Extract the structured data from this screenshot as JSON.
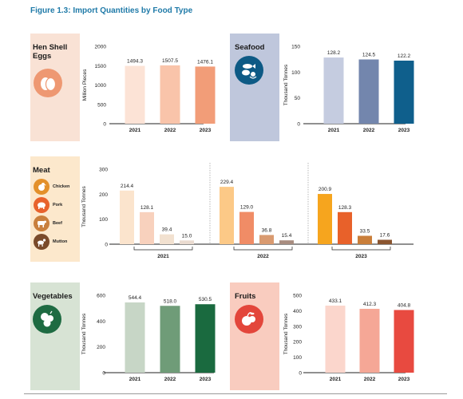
{
  "figure_title": "Figure 1.3: Import Quantities by Food Type",
  "colors": {
    "title": "#1f7aa8",
    "eggs_side": "#f9e2d5",
    "eggs_icon": "#ee9872",
    "seafood_side": "#bfc7dc",
    "seafood_icon": "#0d5a85",
    "meat_side": "#fce8cc",
    "meat_icon": "#e3902a",
    "veg_side": "#d7e3d4",
    "veg_icon": "#1e6b42",
    "fruits_side": "#f9ccbf",
    "fruits_icon": "#e3463b"
  },
  "panels": {
    "eggs": {
      "label_line1": "Hen Shell",
      "label_line2": "Eggs",
      "icon": "egg-icon"
    },
    "seafood": {
      "label": "Seafood",
      "icon": "fish-icon"
    },
    "meat": {
      "label": "Meat",
      "legend": [
        {
          "label": "Chicken",
          "icon": "chicken-icon",
          "color": "#e3902a"
        },
        {
          "label": "Pork",
          "icon": "pig-icon",
          "color": "#e8622c"
        },
        {
          "label": "Beef",
          "icon": "cow-icon",
          "color": "#c97f3c"
        },
        {
          "label": "Mutton",
          "icon": "goat-icon",
          "color": "#7a4a2a"
        }
      ]
    },
    "vegetables": {
      "label": "Vegetables",
      "icon": "vegetables-icon"
    },
    "fruits": {
      "label": "Fruits",
      "icon": "fruit-icon"
    }
  },
  "chart_data": [
    {
      "id": "eggs",
      "type": "bar",
      "ylabel": "Million Pieces",
      "categories": [
        "2021",
        "2022",
        "2023"
      ],
      "values": [
        1494.3,
        1507.5,
        1476.1
      ],
      "labels": [
        "1494.3",
        "1507.5",
        "1476.1"
      ],
      "colors": [
        "#fce3d6",
        "#f9c4aa",
        "#f29d78"
      ],
      "ylim": [
        0,
        2000
      ],
      "yticks": [
        0,
        500,
        1000,
        1500,
        2000
      ]
    },
    {
      "id": "seafood",
      "type": "bar",
      "ylabel": "Thousand Tonnes",
      "categories": [
        "2021",
        "2022",
        "2023"
      ],
      "values": [
        128.2,
        124.5,
        122.2
      ],
      "labels": [
        "128.2",
        "124.5",
        "122.2"
      ],
      "colors": [
        "#c5cce0",
        "#7386ad",
        "#0f5f8c"
      ],
      "ylim": [
        0,
        150
      ],
      "yticks": [
        0,
        50,
        100,
        150
      ]
    },
    {
      "id": "meat",
      "type": "bar",
      "ylabel": "Thousand Tonnes",
      "group_categories": [
        "2021",
        "2022",
        "2023"
      ],
      "series_order": [
        "Chicken",
        "Pork",
        "Beef",
        "Mutton"
      ],
      "groups": [
        {
          "year": "2021",
          "values": [
            214.4,
            128.1,
            39.4,
            15.0
          ],
          "labels": [
            "214.4",
            "128.1",
            "39.4",
            "15.0"
          ],
          "colors": [
            "#fbe4cd",
            "#f8d1bd",
            "#f2e1d0",
            "#eadbd0"
          ]
        },
        {
          "year": "2022",
          "values": [
            229.4,
            129.0,
            36.8,
            15.4
          ],
          "labels": [
            "229.4",
            "129.0",
            "36.8",
            "15.4"
          ],
          "colors": [
            "#fcc987",
            "#f08c66",
            "#d99a70",
            "#a88d80"
          ]
        },
        {
          "year": "2023",
          "values": [
            200.9,
            128.3,
            33.5,
            17.6
          ],
          "labels": [
            "200.9",
            "128.3",
            "33.5",
            "17.6"
          ],
          "colors": [
            "#f6a51e",
            "#e8612a",
            "#c97e3a",
            "#8a5530"
          ]
        }
      ],
      "ylim": [
        0,
        300
      ],
      "yticks": [
        0,
        100,
        200,
        300
      ]
    },
    {
      "id": "vegetables",
      "type": "bar",
      "ylabel": "Thousand Tonnes",
      "categories": [
        "2021",
        "2022",
        "2023"
      ],
      "values": [
        544.4,
        518.0,
        530.5
      ],
      "labels": [
        "544.4",
        "518.0",
        "530.5"
      ],
      "colors": [
        "#c7d6c6",
        "#6f9c78",
        "#1a6a3f"
      ],
      "ylim": [
        0,
        600
      ],
      "yticks": [
        0,
        200,
        400,
        600
      ]
    },
    {
      "id": "fruits",
      "type": "bar",
      "ylabel": "Thousand Tonnes",
      "categories": [
        "2021",
        "2022",
        "2023"
      ],
      "values": [
        433.1,
        412.3,
        404.8
      ],
      "labels": [
        "433.1",
        "412.3",
        "404.8"
      ],
      "colors": [
        "#fbd6cc",
        "#f5a796",
        "#e84a40"
      ],
      "ylim": [
        0,
        500
      ],
      "yticks": [
        0,
        100,
        200,
        300,
        400,
        500
      ]
    }
  ]
}
